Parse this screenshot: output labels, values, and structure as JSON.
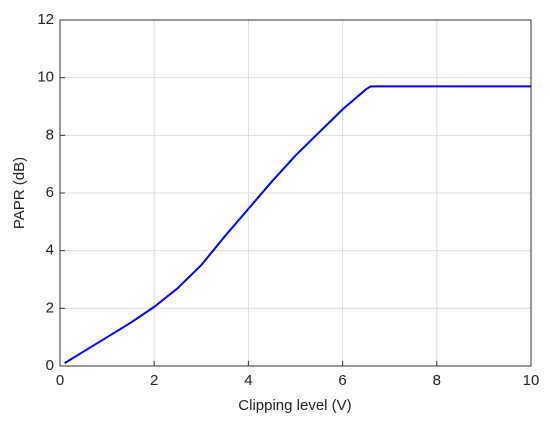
{
  "chart_data": {
    "type": "line",
    "xlabel": "Clipping level (V)",
    "ylabel": "PAPR (dB)",
    "x": [
      0.1,
      0.5,
      1,
      1.5,
      2,
      2.5,
      3,
      3.5,
      4,
      4.5,
      5,
      5.5,
      6,
      6.5,
      6.6,
      7,
      8,
      9,
      10
    ],
    "series": [
      {
        "color": "#0000ff",
        "values": [
          0.1,
          0.5,
          1.0,
          1.5,
          2.05,
          2.7,
          3.5,
          4.5,
          5.45,
          6.4,
          7.3,
          8.1,
          8.9,
          9.6,
          9.7,
          9.7,
          9.7,
          9.7,
          9.7
        ]
      }
    ],
    "xlim": [
      0,
      10
    ],
    "xticks": [
      0,
      2,
      4,
      6,
      8,
      10
    ],
    "ylim": [
      0,
      12
    ],
    "yticks": [
      0,
      2,
      4,
      6,
      8,
      10,
      12
    ],
    "grid": true
  }
}
